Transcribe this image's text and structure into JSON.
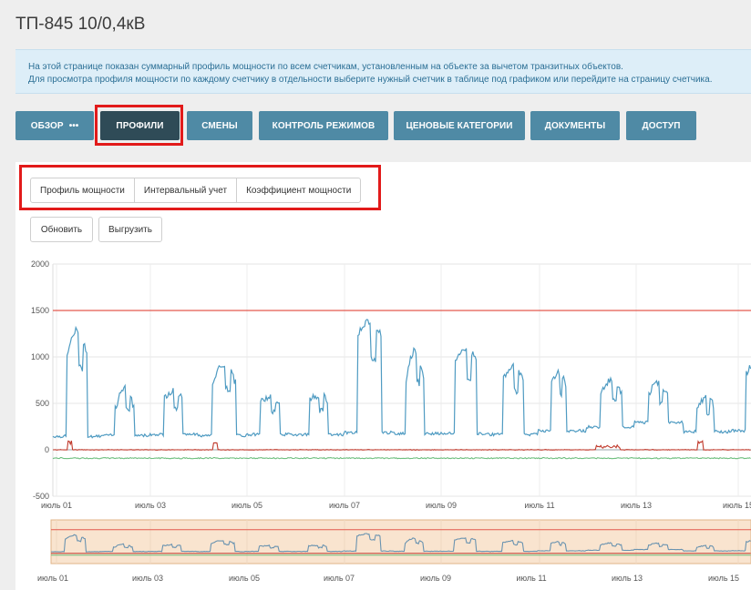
{
  "page": {
    "title": "ТП-845 10/0,4кВ"
  },
  "info": {
    "line1": "На этой странице показан суммарный профиль мощности по всем счетчикам, установленным на объекте за вычетом транзитных объектов.",
    "line2": "Для просмотра профиля мощности по каждому счетчику в отдельности выберите нужный счетчик в таблице под графиком или перейдите на страницу счетчика."
  },
  "nav": {
    "tabs": [
      {
        "label": "ОБЗОР",
        "extra": "•••"
      },
      {
        "label": "ПРОФИЛИ",
        "active": true
      },
      {
        "label": "СМЕНЫ"
      },
      {
        "label": "КОНТРОЛЬ РЕЖИМОВ"
      },
      {
        "label": "ЦЕНОВЫЕ КАТЕГОРИИ"
      },
      {
        "label": "ДОКУМЕНТЫ"
      },
      {
        "label": "ДОСТУП"
      }
    ]
  },
  "subtabs": [
    "Профиль мощности",
    "Интервальный учет",
    "Коэффициент мощности"
  ],
  "actions": {
    "refresh": "Обновить",
    "export": "Выгрузить"
  },
  "chart_data": {
    "type": "line",
    "ylim": [
      -500,
      2000
    ],
    "y_ticks": [
      "2000",
      "1500",
      "1000",
      "500",
      "0",
      "-500"
    ],
    "x_ticks": [
      "июль 01",
      "июль 03",
      "июль 05",
      "июль 07",
      "июль 09",
      "июль 11",
      "июль 13",
      "июль 15"
    ],
    "limit_line": 1500,
    "grid": true,
    "colors": {
      "main": "#4f9bc2",
      "limit": "#e35a4f",
      "series2": "#c0392b",
      "series3": "#6fbf7f"
    }
  }
}
